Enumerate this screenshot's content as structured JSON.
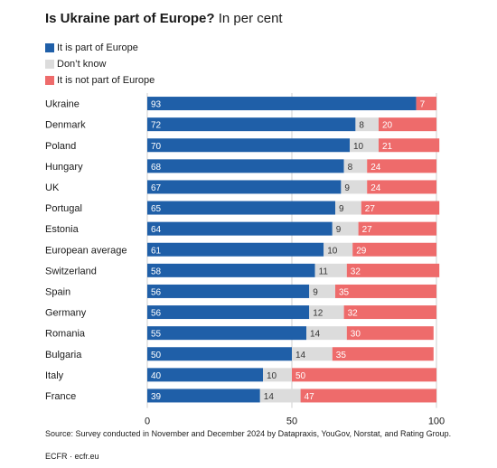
{
  "title": "Is Ukraine part of Europe?",
  "subtitle": "In per cent",
  "legend": [
    {
      "label": "It is part of Europe",
      "color": "#1f5fa8"
    },
    {
      "label": "Don’t know",
      "color": "#dcdcdc"
    },
    {
      "label": "It is not part of Europe",
      "color": "#ee6b6b"
    }
  ],
  "chart_data": {
    "type": "bar",
    "orientation": "horizontal",
    "stacked": true,
    "categories": [
      "Ukraine",
      "Denmark",
      "Poland",
      "Hungary",
      "UK",
      "Portugal",
      "Estonia",
      "European average",
      "Switzerland",
      "Spain",
      "Germany",
      "Romania",
      "Bulgaria",
      "Italy",
      "France"
    ],
    "series": [
      {
        "name": "It is part of Europe",
        "color": "#1f5fa8",
        "label_color": "#ffffff",
        "values": [
          93,
          72,
          70,
          68,
          67,
          65,
          64,
          61,
          58,
          56,
          56,
          55,
          50,
          40,
          39
        ]
      },
      {
        "name": "Don’t know",
        "color": "#dcdcdc",
        "label_color": "#333333",
        "values": [
          0,
          8,
          10,
          8,
          9,
          9,
          9,
          10,
          11,
          9,
          12,
          14,
          14,
          10,
          14
        ]
      },
      {
        "name": "It is not part of Europe",
        "color": "#ee6b6b",
        "label_color": "#ffffff",
        "values": [
          7,
          20,
          21,
          24,
          24,
          27,
          27,
          29,
          32,
          35,
          32,
          30,
          35,
          50,
          47
        ]
      }
    ],
    "xlim": [
      0,
      100
    ],
    "xticks": [
      0,
      50,
      100
    ],
    "grid": true
  },
  "source": "Source: Survey conducted in November and December 2024 by Datapraxis, YouGov, Norstat, and Rating Group.",
  "credit": "ECFR · ecfr.eu"
}
